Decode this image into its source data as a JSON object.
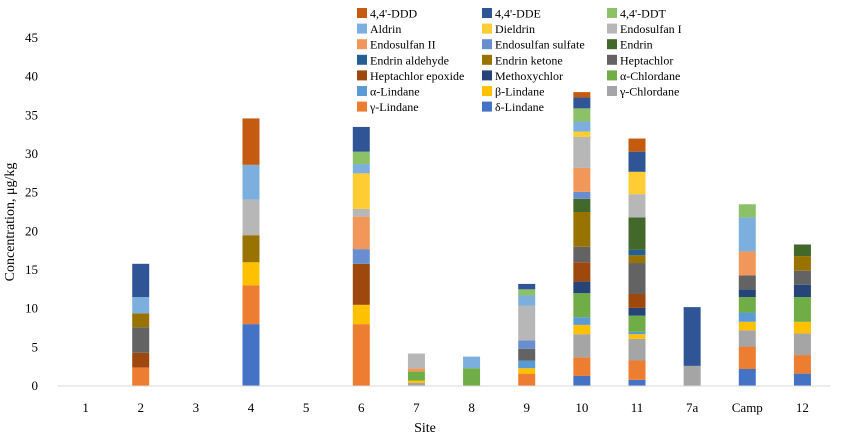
{
  "chart_data": {
    "type": "bar",
    "stacked": true,
    "title": "",
    "xlabel": "Site",
    "ylabel": "Concentration, μg/kg",
    "ylim": [
      0,
      45
    ],
    "yticks": [
      0,
      5,
      10,
      15,
      20,
      25,
      30,
      35,
      40,
      45
    ],
    "grid": false,
    "legend_position": "top-right",
    "categories": [
      "1",
      "2",
      "3",
      "4",
      "5",
      "6",
      "7",
      "8",
      "9",
      "10",
      "11",
      "7a",
      "Camp",
      "12"
    ],
    "series": [
      {
        "name": "δ-Lindane",
        "color": "#4472C4",
        "values": [
          0,
          0,
          0,
          8.0,
          0,
          0,
          0,
          0,
          0,
          1.3,
          0.8,
          0,
          2.2,
          1.6
        ]
      },
      {
        "name": "γ-Lindane",
        "color": "#ED7D31",
        "values": [
          0,
          2.4,
          0,
          5.0,
          0,
          8.0,
          0,
          0,
          1.6,
          2.4,
          2.5,
          0,
          2.9,
          2.4
        ]
      },
      {
        "name": "γ-Chlordane",
        "color": "#A5A5A5",
        "values": [
          0,
          0,
          0,
          0,
          0,
          0,
          0.4,
          0,
          0,
          3.0,
          2.8,
          2.6,
          2.1,
          2.8
        ]
      },
      {
        "name": "β-Lindane",
        "color": "#FFC000",
        "values": [
          0,
          0,
          0,
          3.0,
          0,
          2.5,
          0.3,
          0,
          0.7,
          1.2,
          0.6,
          0,
          1.1,
          1.5
        ]
      },
      {
        "name": "α-Lindane",
        "color": "#5B9BD5",
        "values": [
          0,
          0,
          0,
          0,
          0,
          0,
          0,
          0,
          1.0,
          1.0,
          0.3,
          0,
          1.2,
          0
        ]
      },
      {
        "name": "α-Chlordane",
        "color": "#70AD47",
        "values": [
          0,
          0,
          0,
          0,
          0,
          0,
          1.2,
          2.3,
          0,
          3.1,
          2.1,
          0,
          2.0,
          3.2
        ]
      },
      {
        "name": "Methoxychlor",
        "color": "#264478",
        "values": [
          0,
          0,
          0,
          0,
          0,
          0,
          0,
          0,
          0,
          1.5,
          1.0,
          0,
          1.0,
          1.6
        ]
      },
      {
        "name": "Heptachlor epoxide",
        "color": "#9E480E",
        "values": [
          0,
          1.9,
          0,
          0,
          0,
          5.3,
          0,
          0,
          0,
          2.5,
          1.8,
          0,
          0,
          0
        ]
      },
      {
        "name": "Heptachlor",
        "color": "#636363",
        "values": [
          0,
          3.3,
          0,
          0,
          0,
          0,
          0,
          0,
          1.5,
          2.0,
          4.0,
          0,
          1.8,
          1.8
        ]
      },
      {
        "name": "Endrin ketone",
        "color": "#997300",
        "values": [
          0,
          1.8,
          0,
          3.5,
          0,
          0,
          0,
          0,
          0,
          4.5,
          1.0,
          0,
          0,
          1.9
        ]
      },
      {
        "name": "Endrin aldehyde",
        "color": "#255E91",
        "values": [
          0,
          0,
          0,
          0,
          0,
          0,
          0,
          0,
          0,
          0,
          0.7,
          0,
          0,
          0
        ]
      },
      {
        "name": "Endrin",
        "color": "#43682B",
        "values": [
          0,
          0,
          0,
          0,
          0,
          0,
          0,
          0,
          0,
          1.7,
          4.2,
          0,
          0,
          1.5
        ]
      },
      {
        "name": "Endosulfan sulfate",
        "color": "#698ED0",
        "values": [
          0,
          0,
          0,
          0,
          0,
          1.9,
          0,
          0,
          1.1,
          0.9,
          0,
          0,
          0,
          0
        ]
      },
      {
        "name": "Endosulfan II",
        "color": "#F1975A",
        "values": [
          0,
          0,
          0,
          0,
          0,
          4.2,
          0.4,
          0,
          0,
          3.1,
          0,
          0,
          3.1,
          0
        ]
      },
      {
        "name": "Endosulfan I",
        "color": "#B7B7B7",
        "values": [
          0,
          0,
          0,
          4.6,
          0,
          1.0,
          1.9,
          0,
          4.5,
          4.0,
          3.0,
          0,
          0,
          0
        ]
      },
      {
        "name": "Dieldrin",
        "color": "#FFCD33",
        "values": [
          0,
          0,
          0,
          0,
          0,
          4.6,
          0,
          0,
          0,
          0.7,
          2.9,
          0,
          0,
          0
        ]
      },
      {
        "name": "Aldrin",
        "color": "#7CAFDD",
        "values": [
          0,
          2.1,
          0,
          4.5,
          0,
          1.2,
          0,
          1.5,
          1.3,
          1.3,
          0,
          0,
          4.4,
          0
        ]
      },
      {
        "name": "4,4'-DDT",
        "color": "#8CC168",
        "values": [
          0,
          0,
          0,
          0,
          0,
          1.6,
          0,
          0,
          0.8,
          1.7,
          0,
          0,
          1.7,
          0
        ]
      },
      {
        "name": "4,4'-DDE",
        "color": "#2F5597",
        "values": [
          0,
          4.3,
          0,
          0,
          0,
          3.2,
          0,
          0,
          0.7,
          1.4,
          2.6,
          7.6,
          0,
          0
        ]
      },
      {
        "name": "4,4'-DDD",
        "color": "#C55A11",
        "values": [
          0,
          0,
          0,
          6.0,
          0,
          0,
          0,
          0,
          0,
          0.7,
          1.7,
          0,
          0,
          0
        ]
      }
    ]
  },
  "legend_order": [
    "4,4'-DDD",
    "4,4'-DDE",
    "4,4'-DDT",
    "Aldrin",
    "Dieldrin",
    "Endosulfan I",
    "Endosulfan II",
    "Endosulfan sulfate",
    "Endrin",
    "Endrin aldehyde",
    "Endrin ketone",
    "Heptachlor",
    "Heptachlor epoxide",
    "Methoxychlor",
    "α-Chlordane",
    "α-Lindane",
    "β-Lindane",
    "γ-Chlordane",
    "γ-Lindane",
    "δ-Lindane"
  ]
}
